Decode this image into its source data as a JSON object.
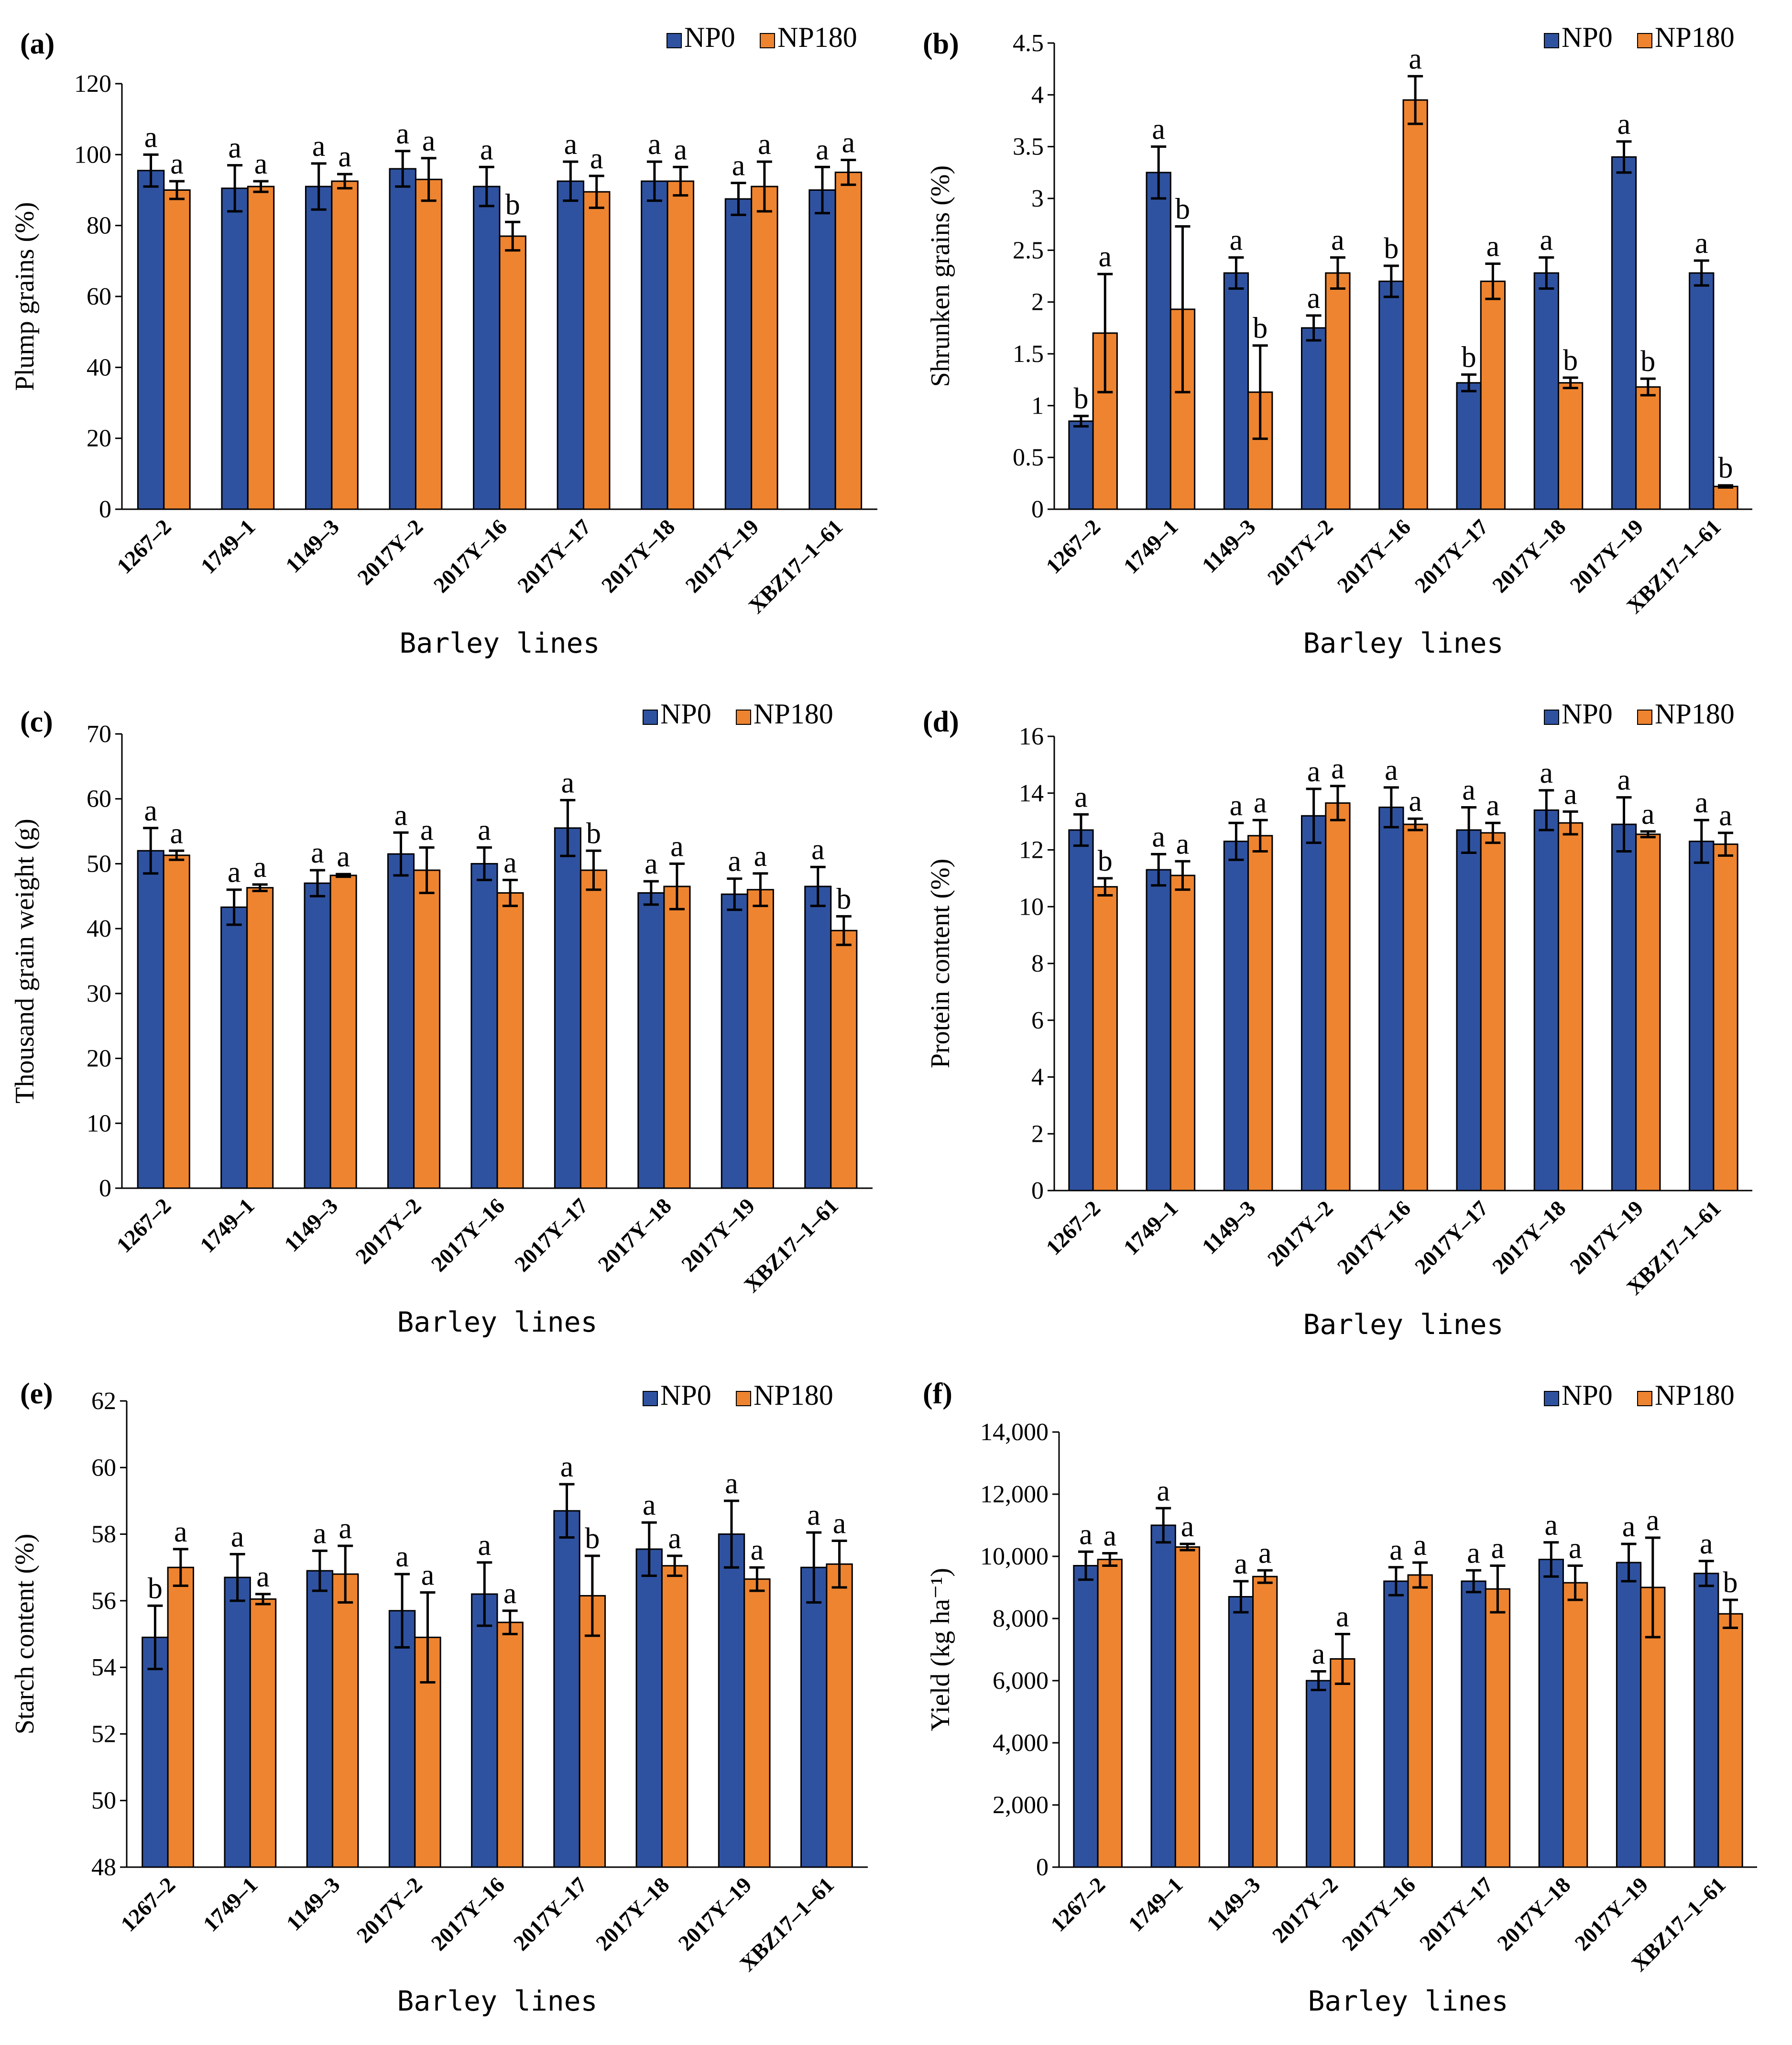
{
  "legend": {
    "series": [
      "NP0",
      "NP180"
    ]
  },
  "colors": {
    "NP0": "#2F52A0",
    "NP180": "#EE8430",
    "bar_border": "#000000",
    "axis": "#000000"
  },
  "chart_data": [
    {
      "panel": "(a)",
      "type": "bar",
      "ylabel": "Plump grains (%)",
      "xlabel": "Barley lines",
      "ylim": [
        0,
        120
      ],
      "yticks": [
        0,
        20,
        40,
        60,
        80,
        100,
        120
      ],
      "ytick_labels": [
        "0",
        "20",
        "40",
        "60",
        "80",
        "100",
        "120"
      ],
      "categories": [
        "1267–2",
        "1749–1",
        "1149–3",
        "2017Y–2",
        "2017Y–16",
        "2017Y–17",
        "2017Y–18",
        "2017Y–19",
        "XBZ17–1–61"
      ],
      "series": [
        {
          "name": "NP0",
          "values": [
            95.5,
            90.5,
            91,
            96,
            91,
            92.5,
            92.5,
            87.5,
            90
          ],
          "errors": [
            4.5,
            6.5,
            6.5,
            5,
            5.5,
            5.5,
            5.5,
            4.5,
            6.5
          ],
          "letters": [
            "a",
            "a",
            "a",
            "a",
            "a",
            "a",
            "a",
            "a",
            "a"
          ]
        },
        {
          "name": "NP180",
          "values": [
            90,
            91,
            92.5,
            93,
            77,
            89.5,
            92.5,
            91,
            95
          ],
          "errors": [
            2.5,
            1.5,
            2,
            6,
            4,
            4.5,
            4,
            7,
            3.5
          ],
          "letters": [
            "a",
            "a",
            "a",
            "a",
            "b",
            "a",
            "a",
            "a",
            "a"
          ]
        }
      ]
    },
    {
      "panel": "(b)",
      "type": "bar",
      "ylabel": "Shrunken grains (%)",
      "xlabel": "Barley lines",
      "ylim": [
        0,
        4.5
      ],
      "yticks": [
        0,
        0.5,
        1,
        1.5,
        2,
        2.5,
        3,
        3.5,
        4,
        4.5
      ],
      "ytick_labels": [
        "0",
        "0.5",
        "1",
        "1.5",
        "2",
        "2.5",
        "3",
        "3.5",
        "4",
        "4.5"
      ],
      "categories": [
        "1267–2",
        "1749–1",
        "1149–3",
        "2017Y–2",
        "2017Y–16",
        "2017Y–17",
        "2017Y–18",
        "2017Y–19",
        "XBZ17–1–61"
      ],
      "series": [
        {
          "name": "NP0",
          "values": [
            0.85,
            3.25,
            2.28,
            1.75,
            2.2,
            1.22,
            2.28,
            3.4,
            2.28
          ],
          "errors": [
            0.05,
            0.25,
            0.15,
            0.12,
            0.15,
            0.08,
            0.15,
            0.15,
            0.12
          ],
          "letters": [
            "b",
            "a",
            "a",
            "a",
            "b",
            "b",
            "a",
            "a",
            "a"
          ]
        },
        {
          "name": "NP180",
          "values": [
            1.7,
            1.93,
            1.13,
            2.28,
            3.95,
            2.2,
            1.22,
            1.18,
            0.22
          ],
          "errors": [
            0.57,
            0.8,
            0.45,
            0.15,
            0.23,
            0.17,
            0.05,
            0.08,
            0.01
          ],
          "letters": [
            "a",
            "b",
            "b",
            "a",
            "a",
            "a",
            "b",
            "b",
            "b"
          ]
        }
      ]
    },
    {
      "panel": "(c)",
      "type": "bar",
      "ylabel": "Thousand grain weight (g)",
      "xlabel": "Barley lines",
      "ylim": [
        0,
        70
      ],
      "yticks": [
        0,
        10,
        20,
        30,
        40,
        50,
        60,
        70
      ],
      "ytick_labels": [
        "0",
        "10",
        "20",
        "30",
        "40",
        "50",
        "60",
        "70"
      ],
      "categories": [
        "1267–2",
        "1749–1",
        "1149–3",
        "2017Y–2",
        "2017Y–16",
        "2017Y–17",
        "2017Y–18",
        "2017Y–19",
        "XBZ17–1–61"
      ],
      "series": [
        {
          "name": "NP0",
          "values": [
            52,
            43.3,
            47,
            51.5,
            50,
            55.5,
            45.5,
            45.3,
            46.5
          ],
          "errors": [
            3.5,
            2.7,
            2,
            3.3,
            2.5,
            4.3,
            1.8,
            2.4,
            3
          ],
          "letters": [
            "a",
            "a",
            "a",
            "a",
            "a",
            "a",
            "a",
            "a",
            "a"
          ]
        },
        {
          "name": "NP180",
          "values": [
            51.3,
            46.3,
            48.2,
            49,
            45.5,
            49,
            46.5,
            46,
            39.7
          ],
          "errors": [
            0.7,
            0.5,
            0.2,
            3.5,
            2,
            3,
            3.5,
            2.5,
            2.2
          ],
          "letters": [
            "a",
            "a",
            "a",
            "a",
            "a",
            "b",
            "a",
            "a",
            "b"
          ]
        }
      ]
    },
    {
      "panel": "(d)",
      "type": "bar",
      "ylabel": "Protein content (%)",
      "xlabel": "Barley lines",
      "ylim": [
        0,
        16
      ],
      "yticks": [
        0,
        2,
        4,
        6,
        8,
        10,
        12,
        14,
        16
      ],
      "ytick_labels": [
        "0",
        "2",
        "4",
        "6",
        "8",
        "10",
        "12",
        "14",
        "16"
      ],
      "categories": [
        "1267–2",
        "1749–1",
        "1149–3",
        "2017Y–2",
        "2017Y–16",
        "2017Y–17",
        "2017Y–18",
        "2017Y–19",
        "XBZ17–1–61"
      ],
      "series": [
        {
          "name": "NP0",
          "values": [
            12.7,
            11.3,
            12.3,
            13.2,
            13.5,
            12.7,
            13.4,
            12.9,
            12.3
          ],
          "errors": [
            0.55,
            0.55,
            0.65,
            0.95,
            0.7,
            0.8,
            0.7,
            0.95,
            0.75
          ],
          "letters": [
            "a",
            "a",
            "a",
            "a",
            "a",
            "a",
            "a",
            "a",
            "a"
          ]
        },
        {
          "name": "NP180",
          "values": [
            10.7,
            11.1,
            12.5,
            13.65,
            12.9,
            12.6,
            12.95,
            12.55,
            12.2
          ],
          "errors": [
            0.3,
            0.5,
            0.55,
            0.6,
            0.2,
            0.35,
            0.4,
            0.1,
            0.4
          ],
          "letters": [
            "b",
            "a",
            "a",
            "a",
            "a",
            "a",
            "a",
            "a",
            "a"
          ]
        }
      ]
    },
    {
      "panel": "(e)",
      "type": "bar",
      "ylabel": "Starch content (%)",
      "xlabel": "Barley lines",
      "ylim": [
        48,
        62
      ],
      "yticks": [
        48,
        50,
        52,
        54,
        56,
        58,
        60,
        62
      ],
      "ytick_labels": [
        "48",
        "50",
        "52",
        "54",
        "56",
        "58",
        "60",
        "62"
      ],
      "categories": [
        "1267–2",
        "1749–1",
        "1149–3",
        "2017Y–2",
        "2017Y–16",
        "2017Y–17",
        "2017Y–18",
        "2017Y–19",
        "XBZ17–1–61"
      ],
      "series": [
        {
          "name": "NP0",
          "values": [
            54.9,
            56.7,
            56.9,
            55.7,
            56.2,
            58.7,
            57.55,
            58,
            57
          ],
          "errors": [
            0.95,
            0.7,
            0.6,
            1.1,
            0.95,
            0.8,
            0.8,
            1,
            1.05
          ],
          "letters": [
            "b",
            "a",
            "a",
            "a",
            "a",
            "a",
            "a",
            "a",
            "a"
          ]
        },
        {
          "name": "NP180",
          "values": [
            57,
            56.05,
            56.8,
            54.9,
            55.35,
            56.15,
            57.05,
            56.65,
            57.1
          ],
          "errors": [
            0.55,
            0.15,
            0.85,
            1.35,
            0.35,
            1.2,
            0.3,
            0.35,
            0.7
          ],
          "letters": [
            "a",
            "a",
            "a",
            "a",
            "a",
            "b",
            "a",
            "a",
            "a"
          ]
        }
      ]
    },
    {
      "panel": "(f)",
      "type": "bar",
      "ylabel": "Yield (kg ha⁻¹)",
      "xlabel": "Barley lines",
      "ylim": [
        0,
        14000
      ],
      "yticks": [
        0,
        2000,
        4000,
        6000,
        8000,
        10000,
        12000,
        14000
      ],
      "ytick_labels": [
        "0",
        "2,000",
        "4,000",
        "6,000",
        "8,000",
        "10,000",
        "12,000",
        "14,000"
      ],
      "categories": [
        "1267–2",
        "1749–1",
        "1149–3",
        "2017Y–2",
        "2017Y–16",
        "2017Y–17",
        "2017Y–18",
        "2017Y–19",
        "XBZ17–1–61"
      ],
      "series": [
        {
          "name": "NP0",
          "values": [
            9700,
            11000,
            8700,
            6000,
            9200,
            9200,
            9900,
            9800,
            9450
          ],
          "errors": [
            450,
            550,
            500,
            300,
            450,
            350,
            550,
            600,
            400
          ],
          "letters": [
            "a",
            "a",
            "a",
            "a",
            "a",
            "a",
            "a",
            "a",
            "a"
          ]
        },
        {
          "name": "NP180",
          "values": [
            9900,
            10300,
            9350,
            6700,
            9400,
            8950,
            9150,
            9000,
            8150
          ],
          "errors": [
            200,
            100,
            200,
            800,
            400,
            750,
            550,
            1600,
            450
          ],
          "letters": [
            "a",
            "a",
            "a",
            "a",
            "a",
            "a",
            "a",
            "a",
            "b"
          ]
        }
      ]
    }
  ]
}
